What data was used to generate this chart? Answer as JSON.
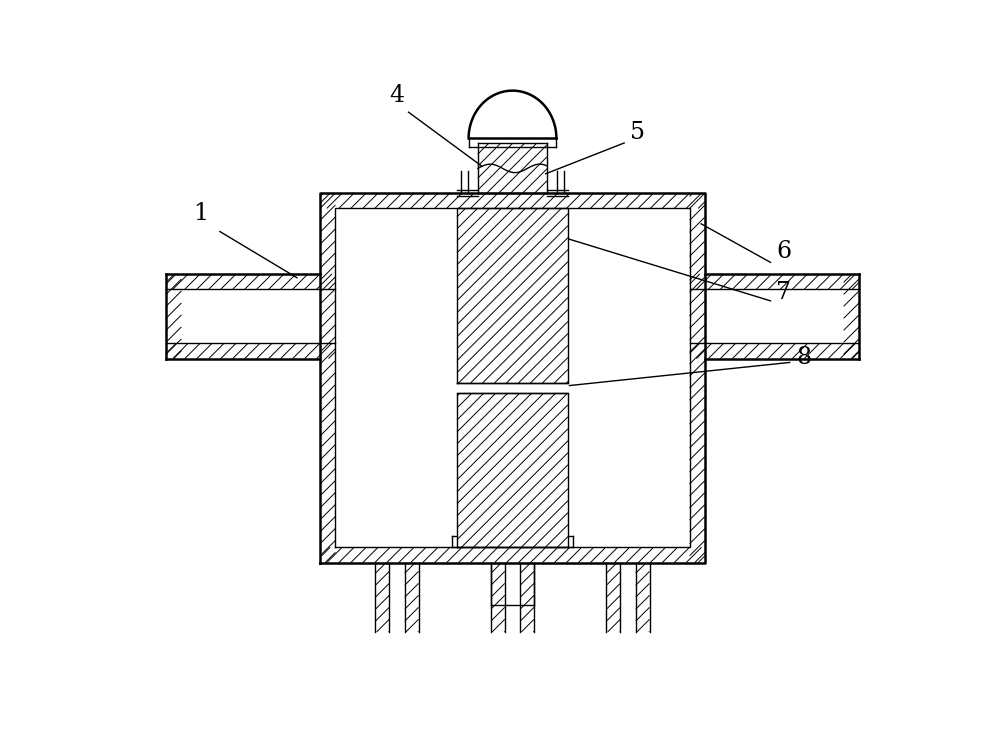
{
  "bg_color": "#ffffff",
  "line_color": "#000000",
  "lw": 1.8,
  "lw_thin": 1.0,
  "figsize": [
    10.0,
    7.36
  ],
  "xlim": [
    0,
    10
  ],
  "ylim": [
    0,
    7.36
  ]
}
